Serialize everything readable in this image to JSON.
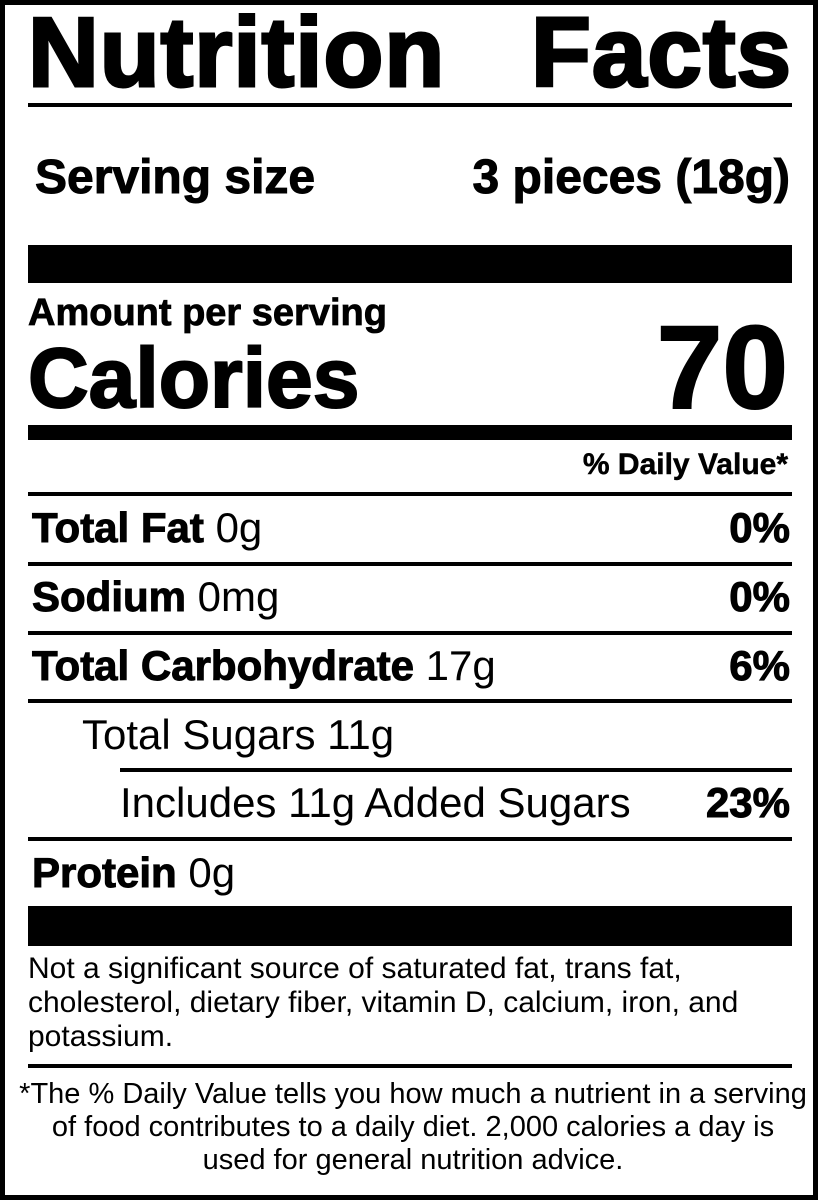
{
  "title": [
    "Nutrition",
    "Facts"
  ],
  "serving": {
    "label": "Serving size",
    "value": "3 pieces (18g)"
  },
  "amount_per_serving": "Amount per serving",
  "calories": {
    "label": "Calories",
    "value": "70"
  },
  "daily_value_header": "% Daily Value*",
  "nutrients": [
    {
      "name": "Total Fat",
      "amount": "0g",
      "dv": "0%"
    },
    {
      "name": "Sodium",
      "amount": "0mg",
      "dv": "0%"
    },
    {
      "name": "Total Carbohydrate",
      "amount": "17g",
      "dv": "6%"
    },
    {
      "name": "Total Sugars 11g",
      "amount": "",
      "dv": ""
    },
    {
      "name": "Includes 11g Added Sugars",
      "amount": "",
      "dv": "23%"
    },
    {
      "name": "Protein",
      "amount": "0g",
      "dv": ""
    }
  ],
  "footnote": "Not a significant source of saturated fat, trans fat, cholesterol, dietary fiber, vitamin D, calcium, iron, and potassium.",
  "dv_note": "*The % Daily Value tells you how much a nutrient in a serving of food contributes to a daily diet. 2,000 calories a day is used for general nutrition advice."
}
